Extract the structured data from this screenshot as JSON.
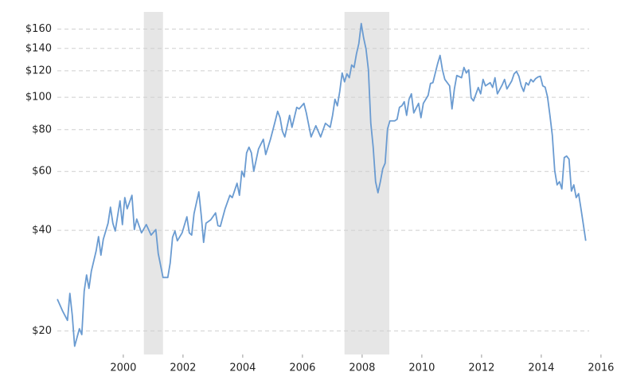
{
  "chart_data": {
    "type": "line",
    "log_y": true,
    "grid": true,
    "xlim": [
      1997.79,
      2016.2
    ],
    "ylim": [
      17,
      180
    ],
    "xticks": [
      2000,
      2002,
      2004,
      2006,
      2008,
      2010,
      2012,
      2014,
      2016
    ],
    "yticks": [
      {
        "value": 20,
        "label": "$20"
      },
      {
        "value": 40,
        "label": "$40"
      },
      {
        "value": 60,
        "label": "$60"
      },
      {
        "value": 80,
        "label": "$80"
      },
      {
        "value": 100,
        "label": "$100"
      },
      {
        "value": 120,
        "label": "$120"
      },
      {
        "value": 140,
        "label": "$140"
      },
      {
        "value": 160,
        "label": "$160"
      }
    ],
    "recessions": [
      [
        2000.69,
        2001.33
      ],
      [
        2007.41,
        2008.91
      ]
    ],
    "recession_color": "#e6e6e6",
    "x": [
      1997.79,
      1997.97,
      1998.13,
      1998.21,
      1998.29,
      1998.37,
      1998.53,
      1998.61,
      1998.69,
      1998.77,
      1998.85,
      1998.93,
      1999.09,
      1999.17,
      1999.25,
      1999.33,
      1999.49,
      1999.57,
      1999.65,
      1999.73,
      1999.89,
      1999.97,
      2000.05,
      2000.13,
      2000.29,
      2000.37,
      2000.45,
      2000.61,
      2000.77,
      2000.93,
      2001.09,
      2001.17,
      2001.33,
      2001.49,
      2001.57,
      2001.65,
      2001.73,
      2001.81,
      2001.97,
      2002.13,
      2002.21,
      2002.29,
      2002.37,
      2002.53,
      2002.61,
      2002.69,
      2002.77,
      2002.93,
      2003.09,
      2003.17,
      2003.25,
      2003.41,
      2003.57,
      2003.65,
      2003.81,
      2003.89,
      2003.97,
      2004.05,
      2004.13,
      2004.21,
      2004.29,
      2004.37,
      2004.53,
      2004.69,
      2004.77,
      2004.93,
      2005.09,
      2005.17,
      2005.25,
      2005.33,
      2005.41,
      2005.57,
      2005.65,
      2005.81,
      2005.89,
      2006.05,
      2006.13,
      2006.29,
      2006.37,
      2006.45,
      2006.61,
      2006.77,
      2006.93,
      2007.01,
      2007.09,
      2007.17,
      2007.25,
      2007.33,
      2007.41,
      2007.49,
      2007.57,
      2007.65,
      2007.73,
      2007.81,
      2007.89,
      2007.97,
      2008.05,
      2008.13,
      2008.21,
      2008.29,
      2008.37,
      2008.45,
      2008.53,
      2008.61,
      2008.69,
      2008.77,
      2008.85,
      2008.93,
      2009.09,
      2009.17,
      2009.25,
      2009.33,
      2009.41,
      2009.49,
      2009.57,
      2009.65,
      2009.73,
      2009.89,
      2009.97,
      2010.05,
      2010.21,
      2010.29,
      2010.37,
      2010.53,
      2010.61,
      2010.69,
      2010.77,
      2010.93,
      2011.01,
      2011.09,
      2011.17,
      2011.33,
      2011.41,
      2011.49,
      2011.57,
      2011.65,
      2011.73,
      2011.89,
      2011.97,
      2012.05,
      2012.13,
      2012.29,
      2012.37,
      2012.45,
      2012.53,
      2012.69,
      2012.77,
      2012.85,
      2013.01,
      2013.09,
      2013.17,
      2013.25,
      2013.33,
      2013.41,
      2013.49,
      2013.57,
      2013.65,
      2013.73,
      2013.81,
      2013.89,
      2013.97,
      2014.05,
      2014.13,
      2014.21,
      2014.29,
      2014.37,
      2014.45,
      2014.53,
      2014.61,
      2014.69,
      2014.77,
      2014.85,
      2014.93,
      2015.01,
      2015.09,
      2015.17,
      2015.25,
      2015.33,
      2015.41,
      2015.49
    ],
    "series": [
      {
        "color": "#6a9bd1",
        "values": [
          24.9,
          22.9,
          21.5,
          25.9,
          22.3,
          18.0,
          20.3,
          19.5,
          26.3,
          29.4,
          26.8,
          30.2,
          34.7,
          38.3,
          33.7,
          37.6,
          42.0,
          46.9,
          42.0,
          39.8,
          49.0,
          41.6,
          50.1,
          46.4,
          50.9,
          40.2,
          43.2,
          39.3,
          41.6,
          38.7,
          40.2,
          34.1,
          28.9,
          28.9,
          31.9,
          38.1,
          39.8,
          37.2,
          39.3,
          43.9,
          39.3,
          38.7,
          44.9,
          52.1,
          44.4,
          36.8,
          42.0,
          43.0,
          45.1,
          41.3,
          41.1,
          46.4,
          50.9,
          50.1,
          55.3,
          50.9,
          60.1,
          57.8,
          68.2,
          70.9,
          68.2,
          60.1,
          70.1,
          74.9,
          67.4,
          74.9,
          85.0,
          90.8,
          86.9,
          79.1,
          76.1,
          88.3,
          81.3,
          93.3,
          92.3,
          95.9,
          89.8,
          76.1,
          79.1,
          82.2,
          76.1,
          83.6,
          81.3,
          88.3,
          98.6,
          94.3,
          104.1,
          118.2,
          111.2,
          117.5,
          114.4,
          124.9,
          122.8,
          134.9,
          144.9,
          166.2,
          150.5,
          139.4,
          120.8,
          83.6,
          70.9,
          55.9,
          51.8,
          55.9,
          61.1,
          63.5,
          80.4,
          85.0,
          85.0,
          85.9,
          93.3,
          94.3,
          97.0,
          88.3,
          98.6,
          102.4,
          89.8,
          95.9,
          86.9,
          95.9,
          101.3,
          110.0,
          110.6,
          126.2,
          133.4,
          120.8,
          113.1,
          108.2,
          92.3,
          105.9,
          116.2,
          114.4,
          122.8,
          118.2,
          120.8,
          99.7,
          97.5,
          107.0,
          102.4,
          113.1,
          108.2,
          110.6,
          107.0,
          114.4,
          102.4,
          108.8,
          113.1,
          105.9,
          111.9,
          117.5,
          119.5,
          115.6,
          108.2,
          104.1,
          110.6,
          108.8,
          113.1,
          111.2,
          113.7,
          115.0,
          115.6,
          108.2,
          107.2,
          100.2,
          88.3,
          77.0,
          60.4,
          54.7,
          55.9,
          53.2,
          66.0,
          66.7,
          65.3,
          52.4,
          54.7,
          50.1,
          51.5,
          46.4,
          41.6,
          37.2
        ]
      }
    ]
  }
}
